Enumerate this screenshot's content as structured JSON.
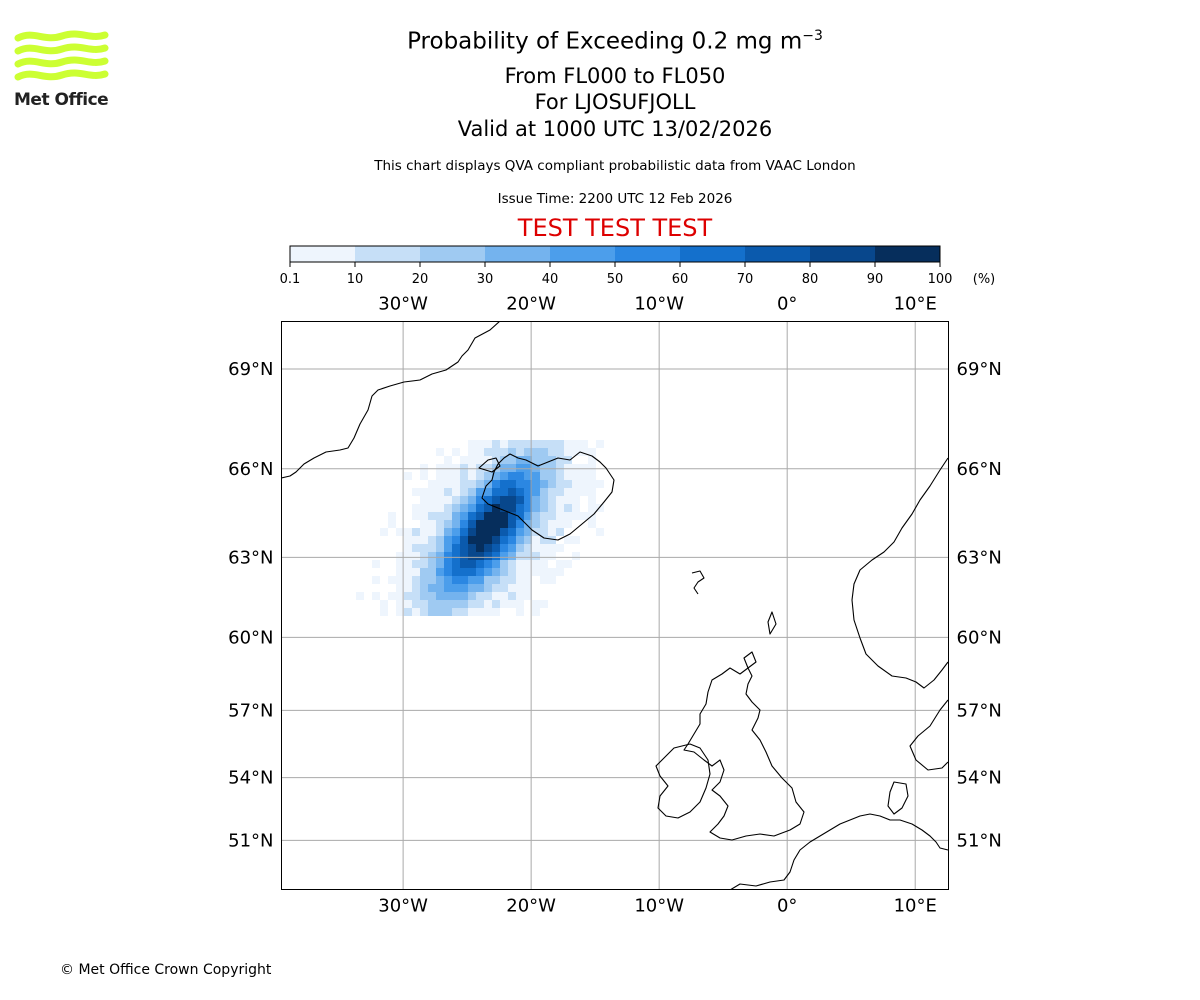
{
  "title": {
    "main": "Probability of Exceeding 0.2 mg m",
    "exponent": "−3",
    "levels": "From FL000 to FL050",
    "volcano": "For LJOSUFJOLL",
    "valid": "Valid at 1000 UTC 13/02/2026"
  },
  "subtitle": "This chart displays QVA compliant probabilistic data from VAAC London",
  "issue_time": "Issue Time: 2200 UTC 12 Feb 2026",
  "banner": "TEST TEST TEST",
  "banner_color": "#dd0000",
  "logo_text": "Met Office",
  "logo_color": "#ccff33",
  "copyright": "© Met Office Crown Copyright",
  "colorbar": {
    "ticks": [
      "0.1",
      "10",
      "20",
      "30",
      "40",
      "50",
      "60",
      "70",
      "80",
      "90",
      "100"
    ],
    "unit": "(%)",
    "colors": [
      "#eef5fd",
      "#c6dff7",
      "#9fcaf2",
      "#74b3ee",
      "#4c9eeb",
      "#2b87e2",
      "#1470cc",
      "#0b5aad",
      "#08478c",
      "#062e5c"
    ]
  },
  "map": {
    "lon_labels": [
      "30°W",
      "20°W",
      "10°W",
      "0°",
      "10°E"
    ],
    "lon_values": [
      -30,
      -20,
      -10,
      0,
      10
    ],
    "lat_labels": [
      "69°N",
      "66°N",
      "63°N",
      "60°N",
      "57°N",
      "54°N",
      "51°N"
    ],
    "lat_values": [
      69,
      66,
      63,
      60,
      57,
      54,
      51
    ],
    "extent": {
      "lon": [
        -39.5,
        12.6
      ],
      "lat": [
        48.5,
        70.3
      ]
    },
    "plume_color_scale": "probability (%)"
  }
}
